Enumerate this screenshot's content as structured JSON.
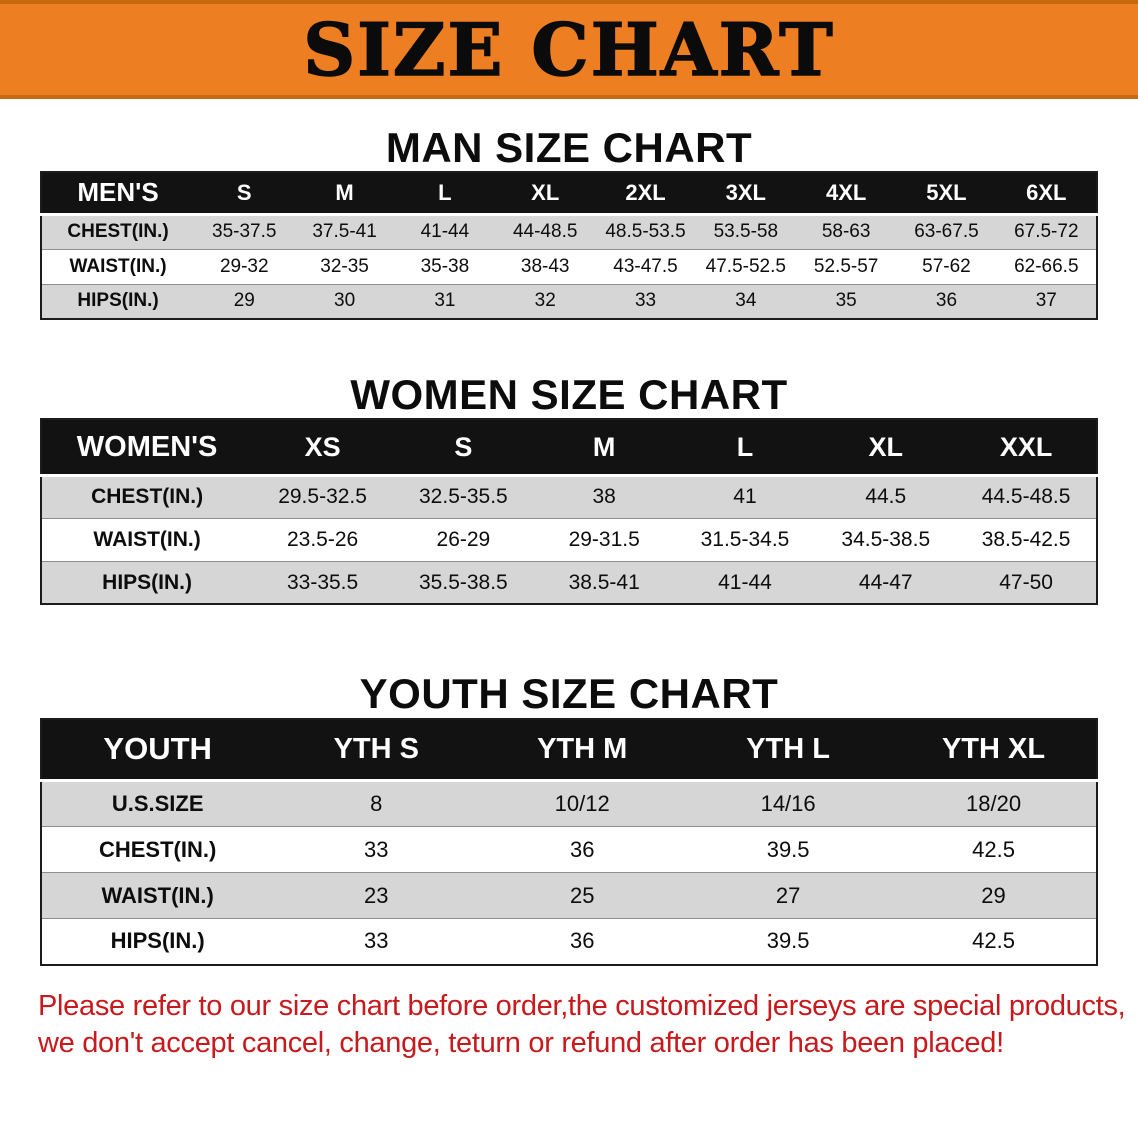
{
  "banner": {
    "title": "SIZE CHART"
  },
  "men": {
    "heading": "MAN SIZE CHART",
    "table": {
      "header": [
        "MEN'S",
        "S",
        "M",
        "L",
        "XL",
        "2XL",
        "3XL",
        "4XL",
        "5XL",
        "6XL"
      ],
      "rows": [
        [
          "CHEST(IN.)",
          "35-37.5",
          "37.5-41",
          "41-44",
          "44-48.5",
          "48.5-53.5",
          "53.5-58",
          "58-63",
          "63-67.5",
          "67.5-72"
        ],
        [
          "WAIST(IN.)",
          "29-32",
          "32-35",
          "35-38",
          "38-43",
          "43-47.5",
          "47.5-52.5",
          "52.5-57",
          "57-62",
          "62-66.5"
        ],
        [
          "HIPS(IN.)",
          "29",
          "30",
          "31",
          "32",
          "33",
          "34",
          "35",
          "36",
          "37"
        ]
      ]
    }
  },
  "women": {
    "heading": "WOMEN SIZE CHART",
    "table": {
      "header": [
        "WOMEN'S",
        "XS",
        "S",
        "M",
        "L",
        "XL",
        "XXL"
      ],
      "rows": [
        [
          "CHEST(IN.)",
          "29.5-32.5",
          "32.5-35.5",
          "38",
          "41",
          "44.5",
          "44.5-48.5"
        ],
        [
          "WAIST(IN.)",
          "23.5-26",
          "26-29",
          "29-31.5",
          "31.5-34.5",
          "34.5-38.5",
          "38.5-42.5"
        ],
        [
          "HIPS(IN.)",
          "33-35.5",
          "35.5-38.5",
          "38.5-41",
          "41-44",
          "44-47",
          "47-50"
        ]
      ]
    }
  },
  "youth": {
    "heading": "YOUTH SIZE CHART",
    "table": {
      "header": [
        "YOUTH",
        "YTH S",
        "YTH M",
        "YTH L",
        "YTH XL"
      ],
      "rows": [
        [
          "U.S.SIZE",
          "8",
          "10/12",
          "14/16",
          "18/20"
        ],
        [
          "CHEST(IN.)",
          "33",
          "36",
          "39.5",
          "42.5"
        ],
        [
          "WAIST(IN.)",
          "23",
          "25",
          "27",
          "29"
        ],
        [
          "HIPS(IN.)",
          "33",
          "36",
          "39.5",
          "42.5"
        ]
      ]
    }
  },
  "disclaimer": {
    "line1": "Please refer to our size chart before order,the customized jerseys are special products,",
    "line2": "we don't accept cancel, change, teturn or refund after order has been placed!"
  },
  "colors": {
    "banner_bg": "#EE7E22",
    "header_row_bg": "#121212",
    "row_alt_bg": "#D6D6D6",
    "disclaimer_text": "#C8191C"
  }
}
